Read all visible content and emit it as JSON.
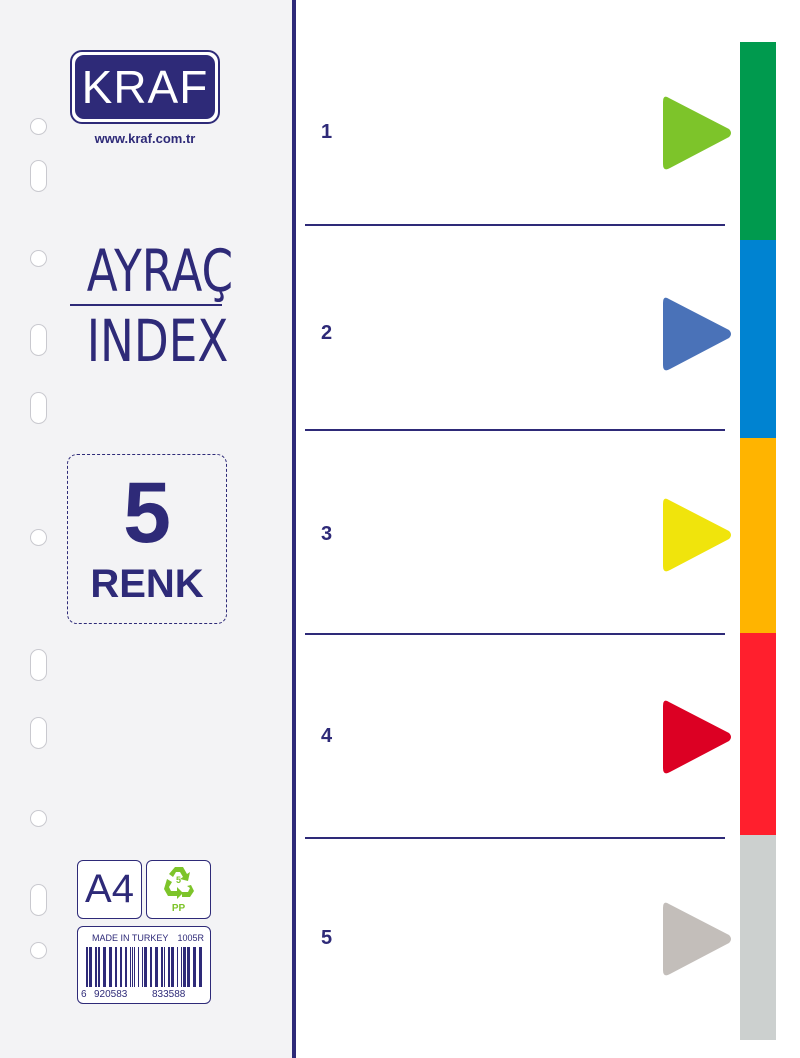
{
  "brand": {
    "logo": "KRAF",
    "url": "www.kraf.com.tr"
  },
  "title": {
    "line1": "AYRAÇ",
    "line2": "INDEX"
  },
  "count": {
    "number": "5",
    "label": "RENK"
  },
  "size": "A4",
  "recycle": {
    "code": "5",
    "material": "PP",
    "color": "#7dc42a"
  },
  "barcode": {
    "origin": "MADE IN TURKEY",
    "product_code": "1005R",
    "digits": [
      "6",
      "920583",
      "833588"
    ]
  },
  "sections": [
    {
      "label": "1",
      "tab_color": "#009a4e",
      "arrow_color": "#7dc42a"
    },
    {
      "label": "2",
      "tab_color": "#0083d1",
      "arrow_color": "#4a72b8"
    },
    {
      "label": "3",
      "tab_color": "#ffb400",
      "arrow_color": "#f0e40c"
    },
    {
      "label": "4",
      "tab_color": "#ff1f2d",
      "arrow_color": "#dc0023"
    },
    {
      "label": "5",
      "tab_color": "#ccd0cf",
      "arrow_color": "#c3beba"
    }
  ],
  "accent": "#2e2a78"
}
